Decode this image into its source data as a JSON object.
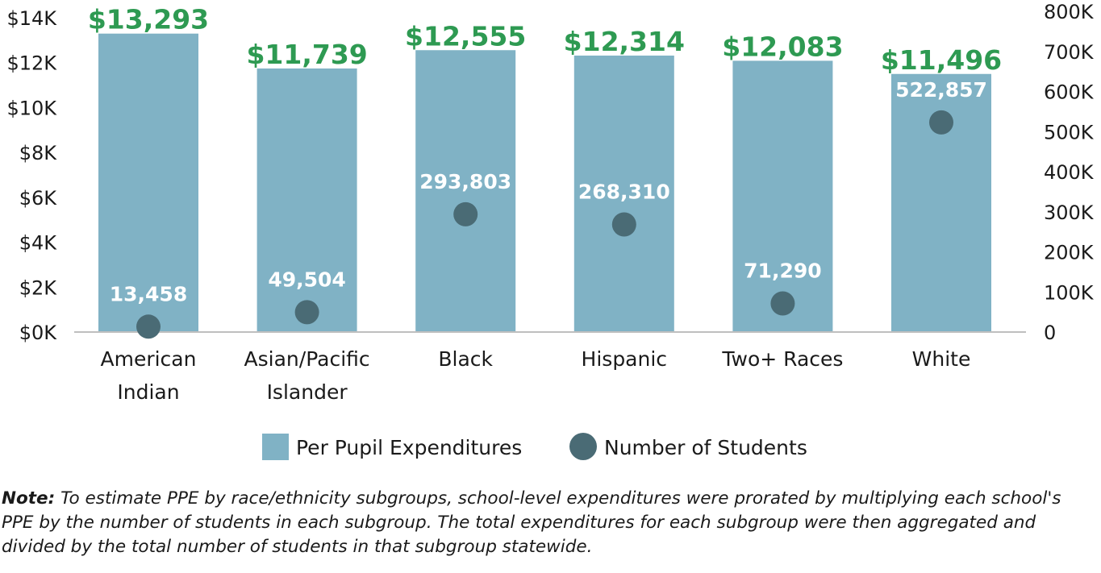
{
  "chart_data": {
    "type": "bar",
    "categories": [
      [
        "American",
        "Indian"
      ],
      [
        "Asian/Pacific",
        "Islander"
      ],
      [
        "Black"
      ],
      [
        "Hispanic"
      ],
      [
        "Two+ Races"
      ],
      [
        "White"
      ]
    ],
    "series": [
      {
        "name": "Per Pupil Expenditures",
        "kind": "bar",
        "axis": "left",
        "color": "#80b2c5",
        "values": [
          13293,
          11739,
          12555,
          12314,
          12083,
          11496
        ],
        "labels": [
          "$13,293",
          "$11,739",
          "$12,555",
          "$12,314",
          "$12,083",
          "$11,496"
        ]
      },
      {
        "name": "Number of Students",
        "kind": "scatter",
        "axis": "right",
        "color": "#4a6b75",
        "values": [
          13458,
          49504,
          293803,
          268310,
          71290,
          522857
        ],
        "labels": [
          "13,458",
          "49,504",
          "293,803",
          "268,310",
          "71,290",
          "522,857"
        ]
      }
    ],
    "y_left": {
      "range": [
        0,
        14000
      ],
      "ticks": [
        0,
        2000,
        4000,
        6000,
        8000,
        10000,
        12000,
        14000
      ],
      "tick_labels": [
        "$0K",
        "$2K",
        "$4K",
        "$6K",
        "$8K",
        "$10K",
        "$12K",
        "$14K"
      ]
    },
    "y_right": {
      "range": [
        0,
        800000
      ],
      "ticks": [
        0,
        100000,
        200000,
        300000,
        400000,
        500000,
        600000,
        700000,
        800000
      ],
      "tick_labels": [
        "0",
        "100K",
        "200K",
        "300K",
        "400K",
        "500K",
        "600K",
        "700K",
        "800K"
      ]
    },
    "legend_position": "bottom-center",
    "grid": false,
    "value_label_color": "#2e9a52"
  },
  "note": {
    "label": "Note:",
    "text": " To estimate PPE by race/ethnicity subgroups, school-level expenditures were prorated by multiplying each school's PPE by the number of students in each subgroup. The total expenditures for each subgroup were then aggregated and divided by the total number of students in that subgroup statewide."
  }
}
